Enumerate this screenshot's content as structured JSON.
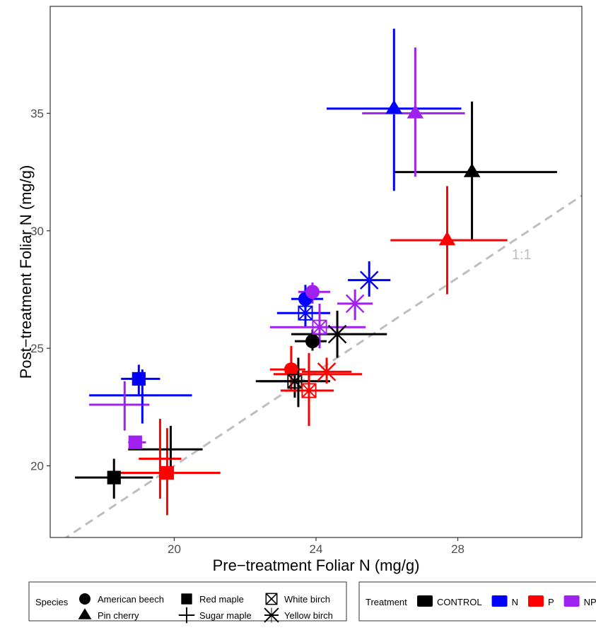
{
  "chart_data": {
    "type": "scatter",
    "xlabel": "Pre−treatment Foliar N (mg/g)",
    "ylabel": "Post−treatment Foliar N (mg/g)",
    "xlim": [
      16.5,
      31.5
    ],
    "ylim": [
      16.95,
      39.55
    ],
    "x_ticks": [
      20,
      24,
      28
    ],
    "y_ticks": [
      20,
      25,
      30,
      35
    ],
    "grid": false,
    "reference_line": {
      "label": "1:1",
      "slope": 1,
      "intercept": 0
    },
    "legend_position": "bottom",
    "treatments": [
      {
        "name": "CONTROL",
        "color": "#000000"
      },
      {
        "name": "N",
        "color": "#0000ff"
      },
      {
        "name": "P",
        "color": "#ff0000"
      },
      {
        "name": "NP",
        "color": "#a020f0"
      }
    ],
    "species": [
      {
        "name": "American beech",
        "shape": "circle"
      },
      {
        "name": "Pin cherry",
        "shape": "triangle"
      },
      {
        "name": "Red maple",
        "shape": "square"
      },
      {
        "name": "Sugar maple",
        "shape": "plus"
      },
      {
        "name": "White birch",
        "shape": "boxx"
      },
      {
        "name": "Yellow birch",
        "shape": "asterisk"
      }
    ],
    "points": [
      {
        "species": "American beech",
        "treatment": "CONTROL",
        "x": 23.9,
        "y": 25.3,
        "xerr": [
          23.4,
          24.3
        ],
        "yerr": [
          24.9,
          25.8
        ]
      },
      {
        "species": "American beech",
        "treatment": "N",
        "x": 23.7,
        "y": 27.1,
        "xerr": [
          23.3,
          24.2
        ],
        "yerr": [
          26.5,
          27.7
        ]
      },
      {
        "species": "American beech",
        "treatment": "P",
        "x": 23.3,
        "y": 24.1,
        "xerr": [
          22.7,
          23.7
        ],
        "yerr": [
          23.2,
          25.1
        ]
      },
      {
        "species": "American beech",
        "treatment": "NP",
        "x": 23.9,
        "y": 27.4,
        "xerr": [
          23.5,
          24.4
        ],
        "yerr": [
          26.9,
          27.8
        ]
      },
      {
        "species": "Pin cherry",
        "treatment": "CONTROL",
        "x": 28.4,
        "y": 32.5,
        "xerr": [
          26.2,
          30.8
        ],
        "yerr": [
          29.6,
          35.5
        ]
      },
      {
        "species": "Pin cherry",
        "treatment": "N",
        "x": 26.2,
        "y": 35.2,
        "xerr": [
          24.3,
          28.1
        ],
        "yerr": [
          31.7,
          38.6
        ]
      },
      {
        "species": "Pin cherry",
        "treatment": "P",
        "x": 27.7,
        "y": 29.6,
        "xerr": [
          26.1,
          29.4
        ],
        "yerr": [
          27.3,
          31.9
        ]
      },
      {
        "species": "Pin cherry",
        "treatment": "NP",
        "x": 26.8,
        "y": 35.0,
        "xerr": [
          25.3,
          28.2
        ],
        "yerr": [
          32.3,
          37.8
        ]
      },
      {
        "species": "Red maple",
        "treatment": "CONTROL",
        "x": 18.3,
        "y": 19.5,
        "xerr": [
          17.2,
          19.4
        ],
        "yerr": [
          18.6,
          20.3
        ]
      },
      {
        "species": "Red maple",
        "treatment": "N",
        "x": 19.0,
        "y": 23.7,
        "xerr": [
          18.5,
          19.6
        ],
        "yerr": [
          23.0,
          24.3
        ]
      },
      {
        "species": "Red maple",
        "treatment": "P",
        "x": 19.8,
        "y": 19.7,
        "xerr": [
          18.2,
          21.3
        ],
        "yerr": [
          17.9,
          21.6
        ]
      },
      {
        "species": "Red maple",
        "treatment": "NP",
        "x": 18.9,
        "y": 21.0,
        "xerr": [
          18.7,
          19.2
        ],
        "yerr": [
          20.7,
          21.2
        ]
      },
      {
        "species": "Sugar maple",
        "treatment": "CONTROL",
        "x": 19.9,
        "y": 20.7,
        "xerr": [
          18.7,
          20.8
        ],
        "yerr": [
          19.8,
          21.7
        ]
      },
      {
        "species": "Sugar maple",
        "treatment": "N",
        "x": 19.1,
        "y": 23.0,
        "xerr": [
          17.6,
          20.5
        ],
        "yerr": [
          21.8,
          24.1
        ]
      },
      {
        "species": "Sugar maple",
        "treatment": "P",
        "x": 19.6,
        "y": 20.3,
        "xerr": [
          19.0,
          20.2
        ],
        "yerr": [
          18.6,
          22.0
        ]
      },
      {
        "species": "Sugar maple",
        "treatment": "NP",
        "x": 18.6,
        "y": 22.6,
        "xerr": [
          17.6,
          19.3
        ],
        "yerr": [
          21.5,
          23.6
        ]
      },
      {
        "species": "White birch",
        "treatment": "CONTROL",
        "x": 23.4,
        "y": 23.6,
        "xerr": [
          22.4,
          23.8
        ],
        "yerr": [
          22.9,
          24.1
        ]
      },
      {
        "species": "White birch",
        "treatment": "N",
        "x": 23.7,
        "y": 26.5,
        "xerr": [
          22.9,
          24.4
        ],
        "yerr": [
          25.9,
          27.1
        ]
      },
      {
        "species": "White birch",
        "treatment": "P",
        "x": 23.8,
        "y": 23.2,
        "xerr": [
          23.0,
          24.5
        ],
        "yerr": [
          21.7,
          24.7
        ]
      },
      {
        "species": "White birch",
        "treatment": "NP",
        "x": 24.1,
        "y": 25.9,
        "xerr": [
          22.7,
          25.4
        ],
        "yerr": [
          25.0,
          26.9
        ]
      },
      {
        "species": "Sugar maple",
        "treatment": "CONTROL",
        "x": 23.5,
        "y": 23.6,
        "xerr": [
          22.3,
          24.4
        ],
        "yerr": [
          22.5,
          24.6
        ]
      },
      {
        "species": "Sugar maple",
        "treatment": "P",
        "x": 23.8,
        "y": 23.9,
        "xerr": [
          22.8,
          25.3
        ],
        "yerr": [
          22.9,
          24.8
        ]
      },
      {
        "species": "Yellow birch",
        "treatment": "CONTROL",
        "x": 24.6,
        "y": 25.6,
        "xerr": [
          23.3,
          26.0
        ],
        "yerr": [
          24.6,
          26.6
        ]
      },
      {
        "species": "Yellow birch",
        "treatment": "N",
        "x": 25.5,
        "y": 27.9,
        "xerr": [
          24.9,
          26.1
        ],
        "yerr": [
          27.2,
          28.7
        ]
      },
      {
        "species": "Yellow birch",
        "treatment": "P",
        "x": 24.3,
        "y": 24.0,
        "xerr": [
          23.6,
          25.0
        ],
        "yerr": [
          23.5,
          24.6
        ]
      },
      {
        "species": "Yellow birch",
        "treatment": "NP",
        "x": 25.1,
        "y": 26.9,
        "xerr": [
          24.6,
          25.6
        ],
        "yerr": [
          26.2,
          27.5
        ]
      }
    ]
  },
  "legend": {
    "species_title": "Species",
    "treatment_title": "Treatment"
  }
}
